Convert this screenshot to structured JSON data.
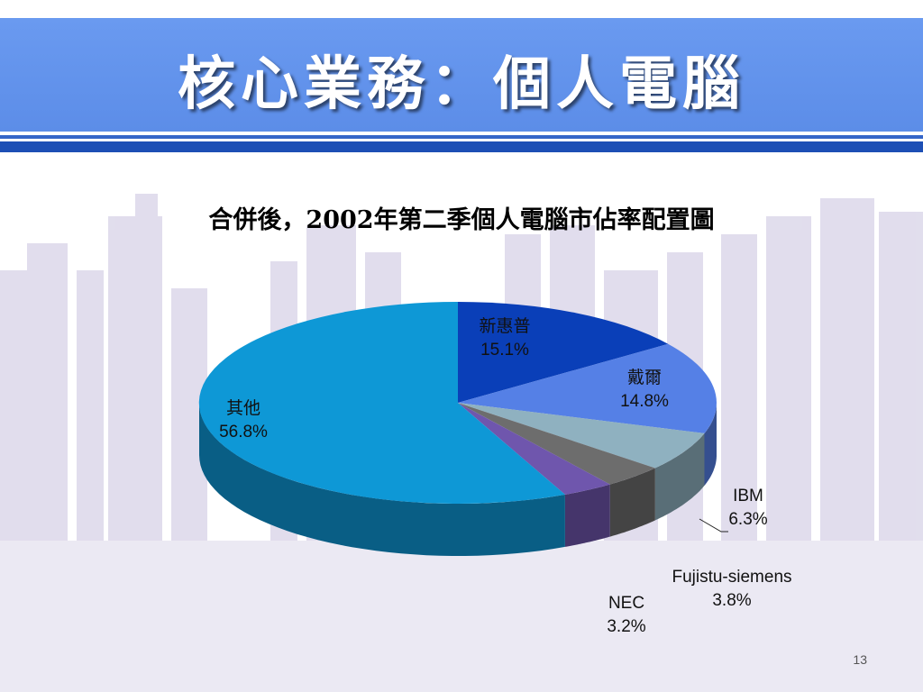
{
  "slide": {
    "title": "核心業務：個人電腦",
    "page_number": "13"
  },
  "colors": {
    "title_bar": "#6a9af0",
    "stripe": "#1d4fb5"
  },
  "chart_data": {
    "type": "pie",
    "title": "合併後，2002年第二季個人電腦市佔率配置圖",
    "style": "3d-exploded-free",
    "unit": "%",
    "slices": [
      {
        "label": "新惠普",
        "value": 15.1,
        "display": "15.1%",
        "color": "#0a3fb8"
      },
      {
        "label": "戴爾",
        "value": 14.8,
        "display": "14.8%",
        "color": "#5580e6"
      },
      {
        "label": "IBM",
        "value": 6.3,
        "display": "6.3%",
        "color": "#8fb1c0"
      },
      {
        "label": "Fujistu-siemens",
        "value": 3.8,
        "display": "3.8%",
        "color": "#6d6d6d"
      },
      {
        "label": "NEC",
        "value": 3.2,
        "display": "3.2%",
        "color": "#6f56ad"
      },
      {
        "label": "其他",
        "value": 56.8,
        "display": "56.8%",
        "color": "#0e98d6"
      }
    ]
  }
}
